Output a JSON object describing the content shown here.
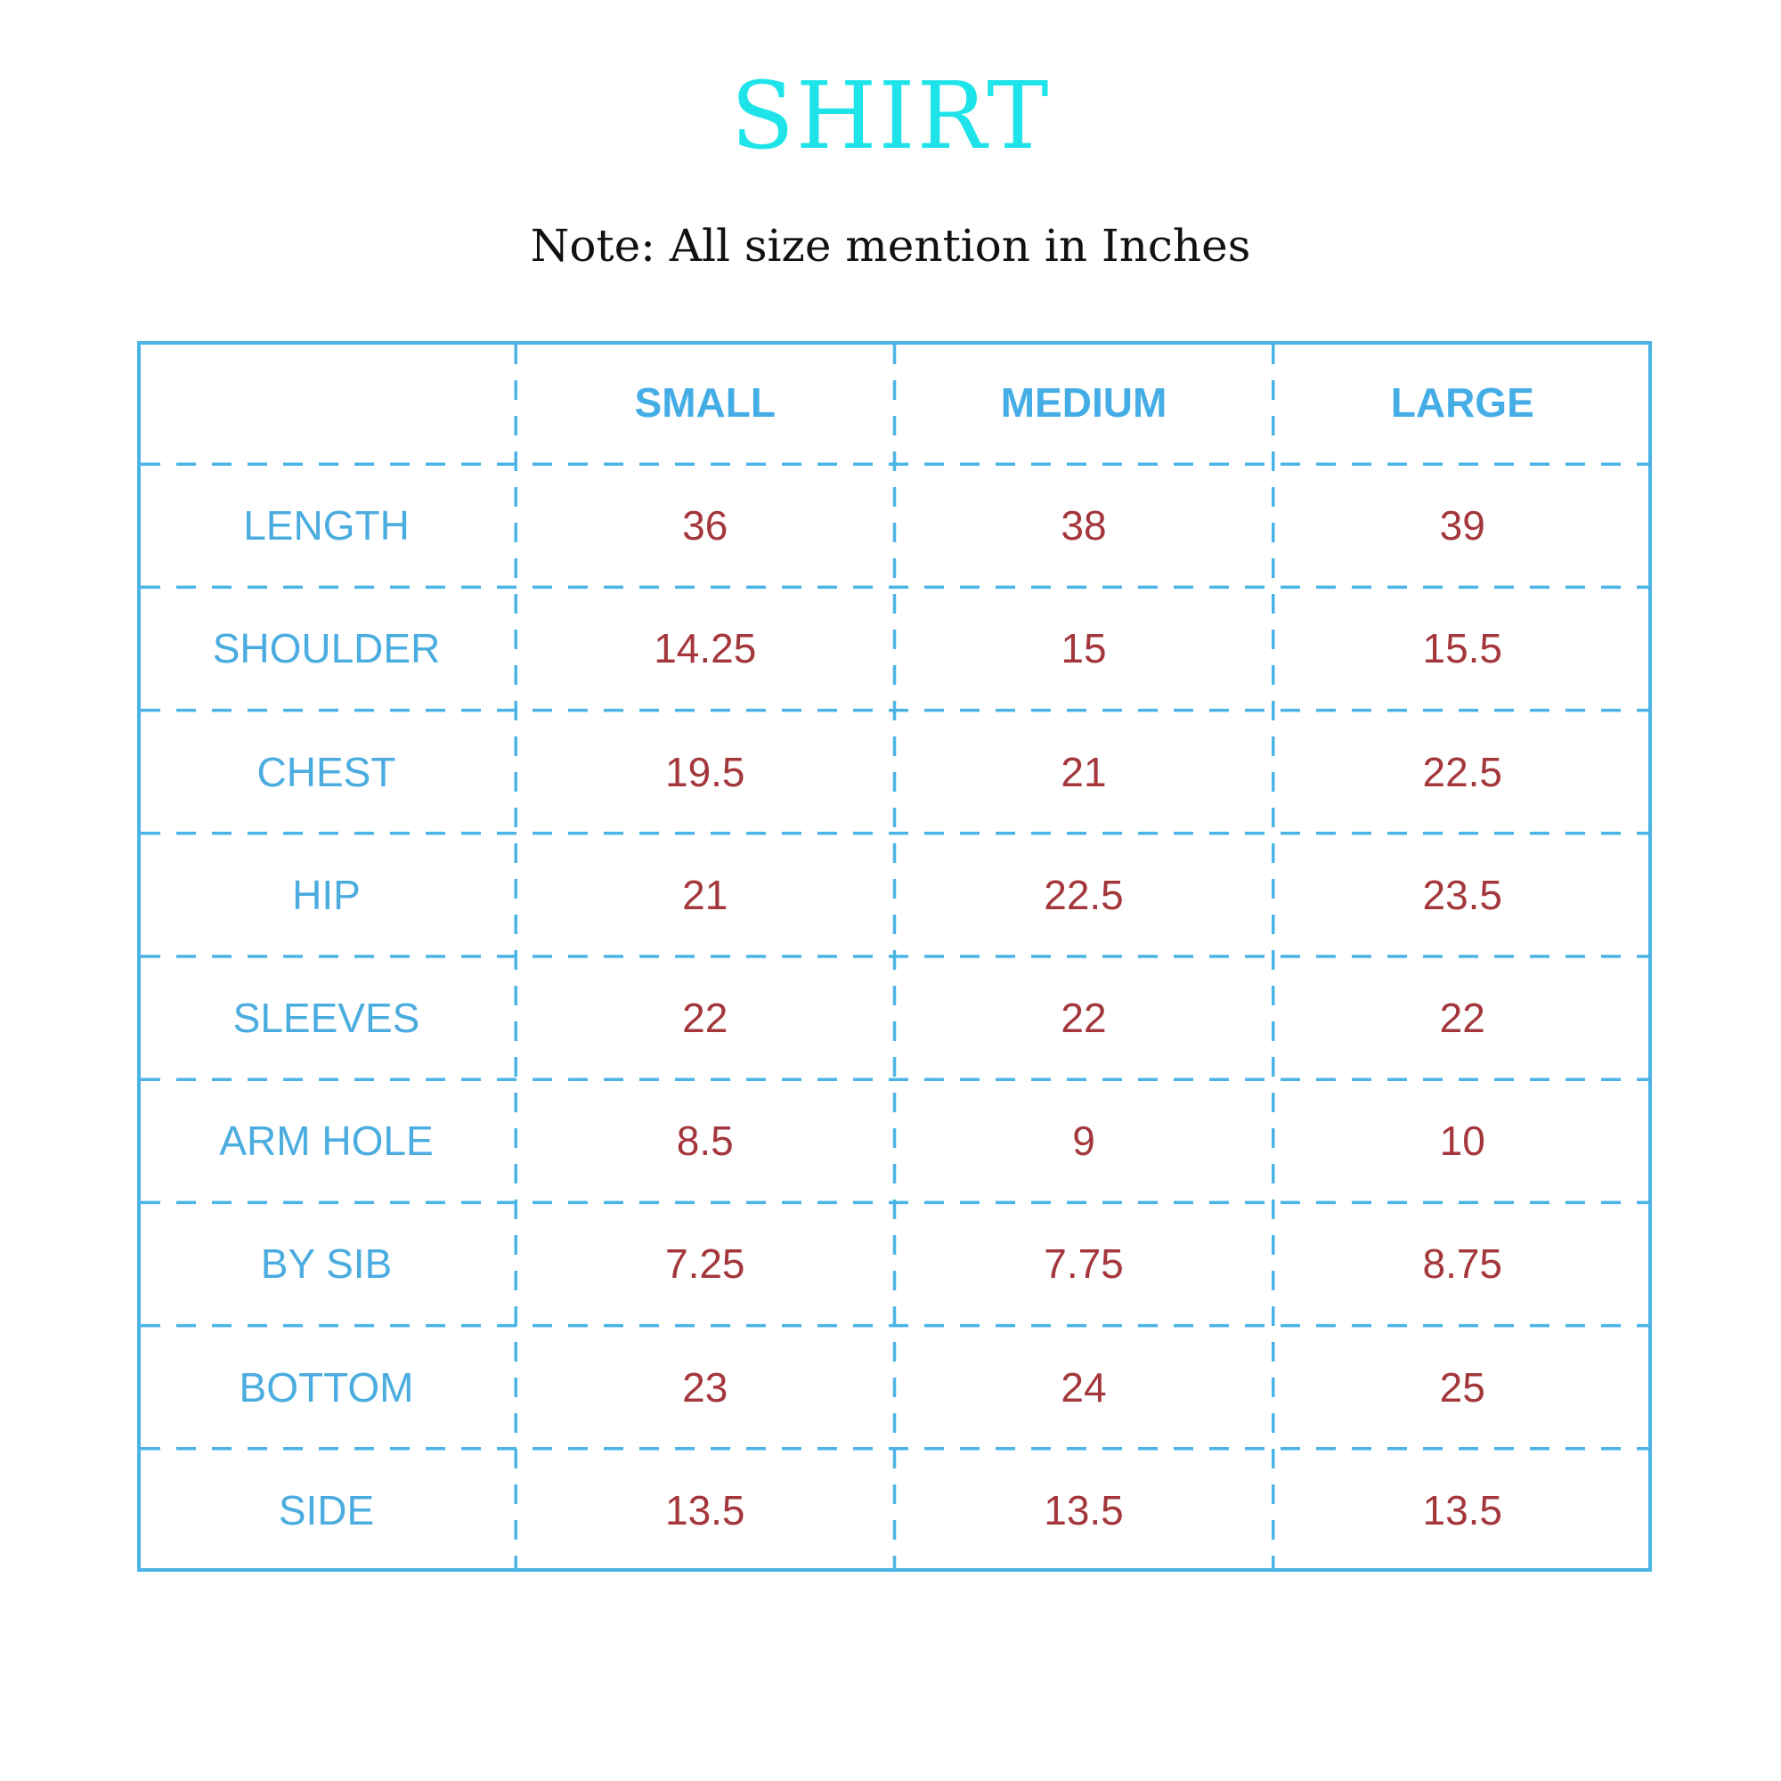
{
  "title": "SHIRT",
  "note": "Note: All size mention in Inches",
  "colors": {
    "title": "#1ee4ea",
    "header": "#45ade6",
    "label": "#4aacdf",
    "value": "#a3373c",
    "border": "#4ab4e6"
  },
  "table": {
    "columns": [
      "",
      "SMALL",
      "MEDIUM",
      "LARGE"
    ],
    "rows": [
      {
        "label": "LENGTH",
        "values": [
          "36",
          "38",
          "39"
        ]
      },
      {
        "label": "SHOULDER",
        "values": [
          "14.25",
          "15",
          "15.5"
        ]
      },
      {
        "label": "CHEST",
        "values": [
          "19.5",
          "21",
          "22.5"
        ]
      },
      {
        "label": "HIP",
        "values": [
          "21",
          "22.5",
          "23.5"
        ]
      },
      {
        "label": "SLEEVES",
        "values": [
          "22",
          "22",
          "22"
        ]
      },
      {
        "label": "ARM HOLE",
        "values": [
          "8.5",
          "9",
          "10"
        ]
      },
      {
        "label": "BY SIB",
        "values": [
          "7.25",
          "7.75",
          "8.75"
        ]
      },
      {
        "label": "BOTTOM",
        "values": [
          "23",
          "24",
          "25"
        ]
      },
      {
        "label": "SIDE",
        "values": [
          "13.5",
          "13.5",
          "13.5"
        ]
      }
    ]
  }
}
